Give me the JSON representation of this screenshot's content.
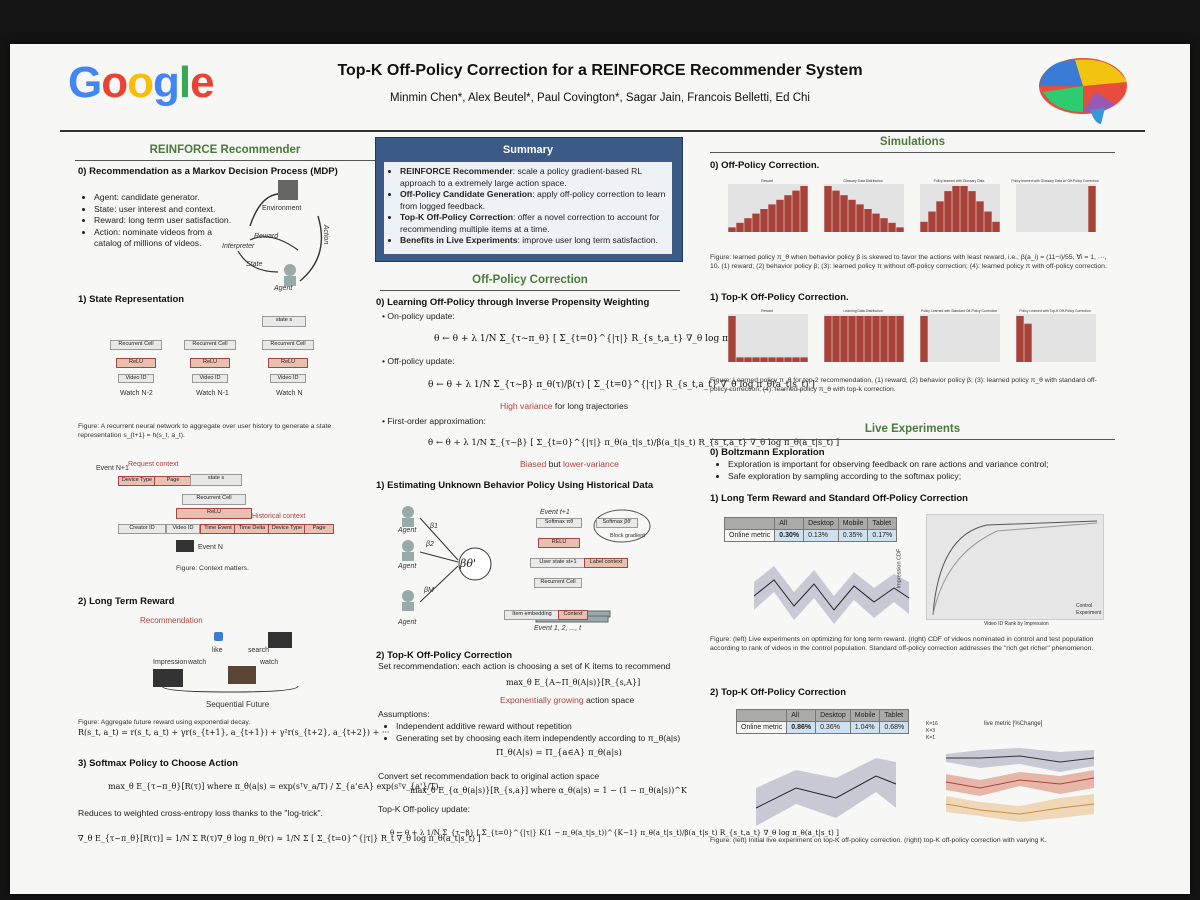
{
  "header": {
    "logo": "Google",
    "title": "Top-K Off-Policy Correction for a REINFORCE Recommender System",
    "authors": "Minmin Chen*, Alex Beutel*, Paul Covington*, Sagar Jain, Francois Belletti, Ed Chi"
  },
  "left": {
    "title": "REINFORCE Recommender",
    "mdp_heading": "0) Recommendation as a Markov Decision Process (MDP)",
    "mdp_items": [
      "Agent: candidate generator.",
      "State: user interest and context.",
      "Reward: long term user satisfaction.",
      "Action: nominate videos from a catalog of millions of videos."
    ],
    "mdp_labels": {
      "environment": "Environment",
      "reward": "Reward",
      "interpreter": "Interpreter",
      "state": "State",
      "action": "Action",
      "agent": "Agent"
    },
    "state_heading": "1) State Representation",
    "state_caption": "Figure: A recurrent neural network to aggregate over user history to generate a state representation s_{t+1} = h(s_t, a_t).",
    "rnn_labels": {
      "cell": "Recurrent Cell",
      "relu": "ReLU",
      "video": "Video ID",
      "watch_n2": "Watch N-2",
      "watch_n1": "Watch N-1",
      "watch_n": "Watch N",
      "state": "state s"
    },
    "context_caption": "Figure: Context matters.",
    "context_labels": {
      "event": "Event N+1",
      "request": "Request context",
      "device": "Device Type",
      "page": "Page",
      "state": "state s",
      "cell": "Recurrent Cell",
      "relu": "ReLU",
      "historical": "Historical context",
      "creator": "Creator ID",
      "video": "Video ID",
      "time_event": "Time Event",
      "time_delta": "Time Delta",
      "device2": "Device Type",
      "page2": "Page",
      "event_n": "Event N"
    },
    "reward_heading": "2) Long Term Reward",
    "reward_labels": {
      "recommendation": "Recommendation",
      "like": "like",
      "search": "search",
      "impression": "Impression",
      "watch1": "watch",
      "watch2": "watch",
      "sequential": "Sequential Future"
    },
    "reward_caption": "Figure: Aggregate future reward using exponential decay.",
    "reward_formula": "R(s_t, a_t) = r(s_t, a_t) + γr(s_{t+1}, a_{t+1}) + γ²r(s_{t+2}, a_{t+2}) + ···",
    "softmax_heading": "3) Softmax Policy to Choose Action",
    "softmax_formula": "max_θ E_{τ~π_θ}[R(τ)]  where  π_θ(a|s) = exp(sᵀv_a/T) / Σ_{a'∈A} exp(sᵀv_{a'}/T)",
    "softmax_text": "Reduces to weighted cross-entropy loss thanks to the \"log-trick\".",
    "softmax_grad": "∇_θ E_{τ~π_θ}[R(τ)] = 1/N Σ R(τ)∇_θ log π_θ(τ) ≈ 1/N Σ [ Σ_{t=0}^{|τ|} R_t ∇_θ log π_θ(a_t|s_t) ]"
  },
  "summary": {
    "title": "Summary",
    "items": [
      {
        "bold": "REINFORCE Recommender",
        "text": ": scale a policy gradient-based RL approach to a extremely large action space."
      },
      {
        "bold": "Off-Policy Candidate Generation",
        "text": ": apply off-policy correction to learn from logged feedback."
      },
      {
        "bold": "Top-K Off-Policy Correction",
        "text": ": offer a novel correction to account for recommending multiple items at a time."
      },
      {
        "bold": "Benefits in Live Experiments",
        "text": ": improve user long term satisfaction."
      }
    ]
  },
  "middle": {
    "title": "Off-Policy Correction",
    "h0": "0) Learning Off-Policy through Inverse Propensity Weighting",
    "onpolicy": "On-policy update:",
    "onpolicy_formula": "θ ← θ + λ 1/N Σ_{τ~π_θ} [ Σ_{t=0}^{|τ|} R_{s_t,a_t} ∇_θ log π_θ(a_t|s_t) ]",
    "offpolicy": "Off-policy update:",
    "offpolicy_formula": "θ ← θ + λ 1/N Σ_{τ~β} π_θ(τ)/β(τ) [ Σ_{t=0}^{|τ|} R_{s_t,a_t} ∇_θ log π_θ(a_t|s_t) ]",
    "high_variance": "High variance",
    "high_variance_rest": " for long trajectories",
    "firstorder": "First-order approximation:",
    "firstorder_formula": "θ ← θ + λ 1/N Σ_{τ~β} [ Σ_{t=0}^{|τ|} π_θ(a_t|s_t)/β(a_t|s_t) R_{s_t,a_t} ∇_θ log π_θ(a_t|s_t) ]",
    "biased": "Biased",
    "but": " but ",
    "lower_variance": "lower-variance",
    "h1": "1) Estimating Unknown Behavior Policy Using Historical Data",
    "beh_labels": {
      "agent": "Agent",
      "b1": "β1",
      "b2": "β2",
      "bm": "βM",
      "theta": "βθ'",
      "event": "Event t+1",
      "softmax": "Softmax πθ",
      "softmax_b": "Softmax βθ'",
      "block": "Block gradient",
      "relu": "RELU",
      "user_state": "User state st+1",
      "label": "Label context",
      "cell": "Recurrent Cell",
      "item": "Item embedding",
      "context": "Context",
      "events": "Event 1, 2, ..., t"
    },
    "h2": "2) Top-K Off-Policy Correction",
    "set_rec": "Set recommendation: each action is choosing a set of K items to recommend",
    "set_formula": "max_θ E_{A~Π_θ(A|s)}[R_{s,A}]",
    "exp_growing": "Exponentially growing",
    "exp_growing_rest": " action space",
    "assumptions": "Assumptions:",
    "assume_items": [
      "Independent additive reward without repetition",
      "Generating set by choosing each item independently according to π_θ(a|s)"
    ],
    "pi_formula": "Π_θ(A|s) = Π_{a∈A} π_θ(a|s)",
    "convert": "Convert set recommendation back to original action space",
    "convert_formula": "max_θ E_{α_θ(a|s)}[R_{s,a}]        where        α_θ(a|s) = 1 − (1 − π_θ(a|s))^K",
    "topk_update": "Top-K Off-policy update:",
    "topk_formula": "θ ← θ + λ 1/N Σ_{τ~β} [ Σ_{t=0}^{|τ|} K(1 − π_θ(a_t|s_t))^{K−1} π_θ(a_t|s_t)/β(a_t|s_t) R_{s_t,a_t} ∇_θ log π_θ(a_t|s_t) ]"
  },
  "right": {
    "sim_title": "Simulations",
    "sim_h0": "0) Off-Policy Correction.",
    "sim_titles0": [
      "Reward",
      "Glossary Data Distribution",
      "Policy learned with Glossary Data",
      "Policy learned with Glossary Data w/ Off-Policy Correction"
    ],
    "sim_caption0": "Figure: learned policy π_θ when behavior policy β is skewed to favor the actions with least reward, i.e., β(a_i) = (11−i)/55, ∀i = 1, ···, 10. (1) reward; (2) behavior policy β; (3): learned policy π without off-policy correction; (4): learned policy π with off-policy correction.",
    "sim_h1": "1) Top-K Off-Policy Correction.",
    "sim_titles1": [
      "Reward",
      "Learning Data Distribution",
      "Policy Learned with Standard Off-Policy Correction",
      "Policy Learned with Top-K Off-Policy Correction"
    ],
    "sim_caption1": "Figure: Learned policy π_θ for top-2 recommendation, (1) reward, (2) behavior policy β; (3): learned policy π_θ with standard off-policy correction; (4): learned policy π_θ with top-k correction.",
    "live_title": "Live Experiments",
    "boltz_h": "0) Boltzmann Exploration",
    "boltz_items": [
      "Exploration is important for observing feedback on rare actions and variance control;",
      "Safe exploration by sampling according to the softmax policy;"
    ],
    "ltr_h": "1) Long Term Reward and Standard Off-Policy Correction",
    "table1": {
      "headers": [
        "",
        "All",
        "Desktop",
        "Mobile",
        "Tablet"
      ],
      "row": [
        "Online metric",
        "0.30%",
        "0.13%",
        "0.35%",
        "0.17%"
      ]
    },
    "cdf_labels": {
      "y": "Impression CDF",
      "x": "Video ID Rank by Impression",
      "control": "Control",
      "experiment": "Experiment"
    },
    "ltr_caption": "Figure: (left) Live experiments on optimizing for long term reward. (right) CDF of videos nominated in control and test population according to rank of videos in the control population. Standard off-policy correction addresses the \"rich get richer\" phenomenon.",
    "topk_h": "2) Top-K Off-Policy Correction",
    "table2": {
      "headers": [
        "",
        "All",
        "Desktop",
        "Mobile",
        "Tablet"
      ],
      "row": [
        "Online metric",
        "0.86%",
        "0.36%",
        "1.04%",
        "0.68%"
      ]
    },
    "live_metric_label": "live metric [%Change]",
    "legend_k": [
      "K=16",
      "K=3",
      "K=1"
    ],
    "topk_caption": "Figure: (left) Initial live experiment on top-K off-policy correction. (right) top-K off-policy correction with varying K."
  },
  "chart_data": [
    {
      "type": "bar",
      "title": "Reward",
      "values": [
        1,
        2,
        3,
        4,
        5,
        6,
        7,
        8,
        9,
        10
      ]
    },
    {
      "type": "bar",
      "title": "Glossary Data Distribution",
      "values": [
        10,
        9,
        8,
        7,
        6,
        5,
        4,
        3,
        2,
        1
      ]
    },
    {
      "type": "bar",
      "title": "Policy learned with Glossary Data",
      "values": [
        2,
        4,
        6,
        8,
        9,
        9,
        8,
        6,
        4,
        2
      ]
    },
    {
      "type": "bar",
      "title": "Policy learned with Glossary Data w/ Off-Policy Correction",
      "values": [
        0,
        0,
        0,
        0,
        0,
        0,
        0,
        0,
        0,
        10
      ]
    },
    {
      "type": "bar",
      "title": "Reward",
      "values": [
        10,
        1,
        1,
        1,
        1,
        1,
        1,
        1,
        1,
        1
      ]
    },
    {
      "type": "bar",
      "title": "Learning Data Distribution",
      "values": [
        1,
        1,
        1,
        1,
        1,
        1,
        1,
        1,
        1,
        1
      ]
    },
    {
      "type": "bar",
      "title": "Policy Learned with Standard Off-Policy Correction",
      "values": [
        10,
        0,
        0,
        0,
        0,
        0,
        0,
        0,
        0,
        0
      ]
    },
    {
      "type": "bar",
      "title": "Policy Learned with Top-K Off-Policy Correction",
      "values": [
        6,
        5,
        0,
        0,
        0,
        0,
        0,
        0,
        0,
        0
      ]
    }
  ]
}
